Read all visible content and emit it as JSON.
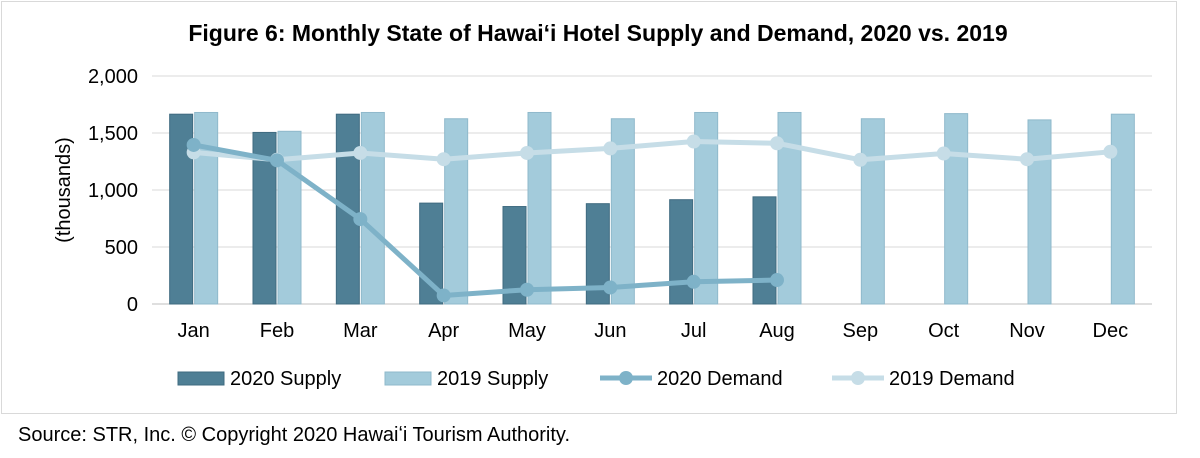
{
  "chart_data": {
    "type": "bar",
    "title": "Figure 6: Monthly State of Hawaiʻi Hotel Supply and Demand, 2020 vs. 2019",
    "ylabel": "(thousands)",
    "xlabel": "",
    "ylim": [
      0,
      2000
    ],
    "yticks": [
      {
        "value": 0,
        "label": "0"
      },
      {
        "value": 500,
        "label": "500"
      },
      {
        "value": 1000,
        "label": "1,000"
      },
      {
        "value": 1500,
        "label": "1,500"
      },
      {
        "value": 2000,
        "label": "2,000"
      }
    ],
    "categories": [
      "Jan",
      "Feb",
      "Mar",
      "Apr",
      "May",
      "Jun",
      "Jul",
      "Aug",
      "Sep",
      "Oct",
      "Nov",
      "Dec"
    ],
    "grid": true,
    "legend_position": "bottom",
    "series": [
      {
        "name": "2020 Supply",
        "kind": "bar",
        "color": "#4f7f95",
        "values": [
          1665,
          1505,
          1665,
          885,
          855,
          880,
          915,
          940,
          null,
          null,
          null,
          null
        ]
      },
      {
        "name": "2019 Supply",
        "kind": "bar",
        "color": "#a3cbdb",
        "values": [
          1680,
          1515,
          1680,
          1625,
          1680,
          1625,
          1680,
          1680,
          1625,
          1670,
          1615,
          1665
        ]
      },
      {
        "name": "2020 Demand",
        "kind": "line",
        "color": "#7eb2c8",
        "values": [
          1395,
          1260,
          745,
          75,
          125,
          145,
          195,
          210,
          null,
          null,
          null,
          null
        ]
      },
      {
        "name": "2019 Demand",
        "kind": "line",
        "color": "#c6dde7",
        "values": [
          1330,
          1265,
          1325,
          1270,
          1325,
          1365,
          1425,
          1410,
          1265,
          1320,
          1270,
          1335
        ]
      }
    ]
  },
  "source": "Source: STR, Inc. © Copyright 2020 Hawaiʻi Tourism Authority."
}
